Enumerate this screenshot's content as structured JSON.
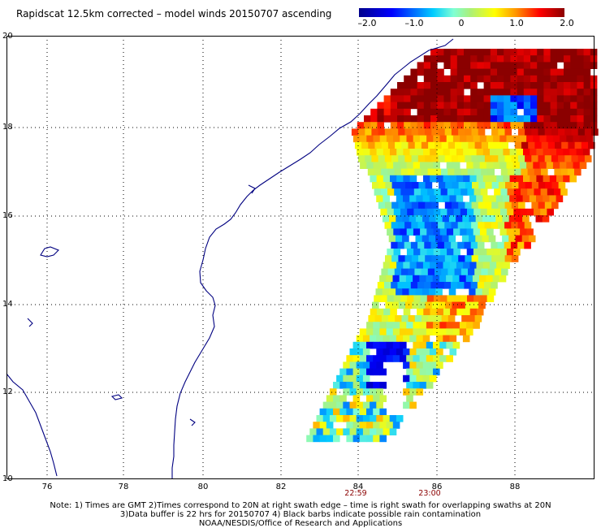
{
  "title": "Rapidscat 12.5km corrected – model winds 20150707 ascending",
  "colorbar": {
    "min": -2.0,
    "max": 2.0,
    "labels": [
      "–2.0",
      "–1.0",
      "0",
      "1.0",
      "2.0"
    ]
  },
  "lat_labels": [
    "20",
    "18",
    "16",
    "14",
    "12",
    "10"
  ],
  "lon_labels": [
    "76",
    "78",
    "80",
    "82",
    "84",
    "86",
    "88"
  ],
  "time_labels": [
    "22:59",
    "23:00"
  ],
  "notes": [
    "Note: 1) Times are GMT 2)Times correspond to 20N at right swath edge – time is right swath for overlapping swaths at 20N",
    "3)Data buffer is 22 hrs for 20150707 4) Black barbs indicate possible rain contamination",
    "NOAA/NESDIS/Office of Research and Applications"
  ],
  "map": {
    "lat_range": [
      10,
      20
    ],
    "lon_range": [
      75,
      90
    ],
    "swath_timing_lon": [
      84,
      86
    ],
    "colors": {
      "coast": "#000080",
      "grid": "#000000"
    }
  }
}
